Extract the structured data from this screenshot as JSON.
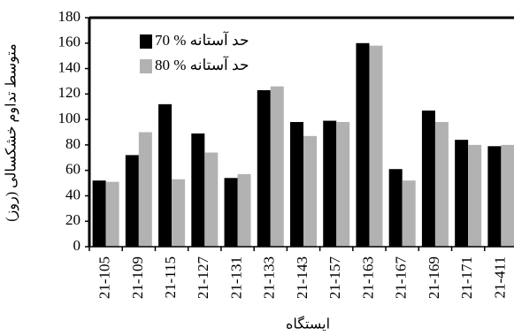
{
  "chart_data": {
    "type": "bar",
    "y_label": "متوسط تداوم خشکسالی (روز)",
    "x_label": "ایستگاه",
    "categories": [
      "21-105",
      "21-109",
      "21-115",
      "21-127",
      "21-131",
      "21-133",
      "21-143",
      "21-157",
      "21-163",
      "21-167",
      "21-169",
      "21-171",
      "21-411"
    ],
    "series": [
      {
        "name": "حد آستانه % 70",
        "color": "#000000",
        "values": [
          52,
          72,
          112,
          89,
          54,
          123,
          98,
          99,
          160,
          61,
          107,
          84,
          79
        ]
      },
      {
        "name": "حد آستانه % 80",
        "color": "#b2b2b2",
        "values": [
          51,
          90,
          53,
          74,
          57,
          126,
          87,
          98,
          158,
          52,
          98,
          80,
          80
        ]
      }
    ],
    "ylim": [
      0,
      180
    ],
    "yticks": [
      0,
      20,
      40,
      60,
      80,
      100,
      120,
      140,
      160,
      180
    ]
  }
}
